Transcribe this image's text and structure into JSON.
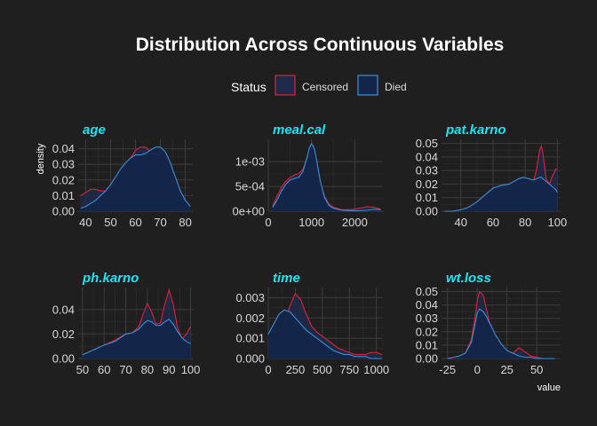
{
  "chart_data": {
    "type": "area",
    "title": "Distribution Across Continuous Variables",
    "xlabel": "value",
    "ylabel": "density",
    "legend": {
      "title": "Status",
      "placement": "top",
      "items": [
        {
          "label": "Censored",
          "fill": "#1f2a4a",
          "stroke": "#e0203a"
        },
        {
          "label": "Died",
          "fill": "#13264a",
          "stroke": "#3b8fd6"
        }
      ]
    },
    "grid": true,
    "facets": [
      {
        "name": "age",
        "xlim": [
          37,
          83
        ],
        "ylim": [
          0,
          0.046
        ],
        "xticks": [
          40,
          50,
          60,
          70,
          80
        ],
        "xtick_labels": [
          "40",
          "50",
          "60",
          "70",
          "80"
        ],
        "yticks": [
          0,
          0.01,
          0.02,
          0.03,
          0.04
        ],
        "ytick_labels": [
          "0.00",
          "0.01",
          "0.02",
          "0.03",
          "0.04"
        ],
        "series": [
          {
            "name": "Censored",
            "x": [
              38,
              40,
              42,
              44,
              46,
              48,
              50,
              52,
              54,
              56,
              58,
              60,
              62,
              64,
              66,
              68,
              70,
              72,
              74,
              76,
              78,
              80,
              82
            ],
            "y": [
              0.01,
              0.012,
              0.014,
              0.014,
              0.013,
              0.013,
              0.015,
              0.019,
              0.024,
              0.029,
              0.034,
              0.039,
              0.041,
              0.041,
              0.038,
              0.036,
              0.036,
              0.034,
              0.029,
              0.021,
              0.013,
              0.007,
              0.003
            ]
          },
          {
            "name": "Died",
            "x": [
              38,
              40,
              42,
              44,
              46,
              48,
              50,
              52,
              54,
              56,
              58,
              60,
              62,
              64,
              66,
              68,
              70,
              72,
              74,
              76,
              78,
              80,
              82
            ],
            "y": [
              0.002,
              0.003,
              0.005,
              0.007,
              0.01,
              0.013,
              0.017,
              0.022,
              0.027,
              0.031,
              0.034,
              0.036,
              0.036,
              0.037,
              0.039,
              0.041,
              0.041,
              0.038,
              0.031,
              0.022,
              0.013,
              0.007,
              0.003
            ]
          }
        ]
      },
      {
        "name": "meal.cal",
        "xlim": [
          0,
          2650
        ],
        "ylim": [
          0,
          0.00145
        ],
        "xticks": [
          0,
          1000,
          2000
        ],
        "xtick_labels": [
          "0",
          "1000",
          "2000"
        ],
        "yticks": [
          0,
          0.0005,
          0.001
        ],
        "ytick_labels": [
          "0e+00",
          "5e-04",
          "1e-03"
        ],
        "series": [
          {
            "name": "Censored",
            "x": [
              100,
              200,
              300,
              400,
              500,
              600,
              700,
              800,
              900,
              950,
              1000,
              1050,
              1100,
              1200,
              1300,
              1400,
              1500,
              1700,
              1900,
              2100,
              2300,
              2450,
              2600
            ],
            "y": [
              0.0001,
              0.0003,
              0.00048,
              0.0006,
              0.00068,
              0.00073,
              0.00076,
              0.00084,
              0.00108,
              0.00122,
              0.00132,
              0.00126,
              0.00108,
              0.0006,
              0.0003,
              0.00015,
              8e-05,
              3e-05,
              3e-05,
              6e-05,
              9e-05,
              8e-05,
              4e-05
            ]
          },
          {
            "name": "Died",
            "x": [
              100,
              200,
              300,
              400,
              500,
              600,
              700,
              800,
              900,
              950,
              1000,
              1050,
              1100,
              1200,
              1300,
              1400,
              1500,
              1700,
              1900,
              2100,
              2300,
              2450,
              2600
            ],
            "y": [
              8e-05,
              0.00022,
              0.0004,
              0.00054,
              0.00063,
              0.00066,
              0.00068,
              0.0008,
              0.0011,
              0.00128,
              0.00136,
              0.0013,
              0.00112,
              0.00062,
              0.00028,
              0.00012,
              6e-05,
              2e-05,
              1e-05,
              1e-05,
              2e-05,
              4e-05,
              3e-05
            ]
          }
        ]
      },
      {
        "name": "pat.karno",
        "xlim": [
          28,
          102
        ],
        "ylim": [
          0,
          0.053
        ],
        "xticks": [
          40,
          60,
          80,
          100
        ],
        "xtick_labels": [
          "40",
          "60",
          "80",
          "100"
        ],
        "yticks": [
          0,
          0.01,
          0.02,
          0.03,
          0.04,
          0.05
        ],
        "ytick_labels": [
          "0.00",
          "0.01",
          "0.02",
          "0.03",
          "0.04",
          "0.05"
        ],
        "series": [
          {
            "name": "Censored",
            "x": [
              30,
              35,
              40,
              45,
              50,
              55,
              60,
              65,
              70,
              73,
              76,
              79,
              82,
              85,
              87,
              89,
              90,
              91,
              93,
              95,
              97,
              99,
              100
            ],
            "y": [
              0.0,
              0.0,
              0.001,
              0.003,
              0.006,
              0.011,
              0.016,
              0.018,
              0.019,
              0.019,
              0.02,
              0.021,
              0.022,
              0.022,
              0.03,
              0.045,
              0.048,
              0.043,
              0.024,
              0.02,
              0.026,
              0.031,
              0.031
            ]
          },
          {
            "name": "Died",
            "x": [
              30,
              35,
              40,
              45,
              50,
              55,
              60,
              65,
              70,
              73,
              76,
              79,
              82,
              85,
              87,
              89,
              90,
              91,
              93,
              95,
              97,
              99,
              100
            ],
            "y": [
              0.0,
              0.0,
              0.001,
              0.003,
              0.007,
              0.012,
              0.017,
              0.019,
              0.02,
              0.022,
              0.024,
              0.025,
              0.024,
              0.023,
              0.024,
              0.025,
              0.025,
              0.024,
              0.022,
              0.02,
              0.018,
              0.016,
              0.014
            ]
          }
        ]
      },
      {
        "name": "ph.karno",
        "xlim": [
          48,
          101
        ],
        "ylim": [
          0,
          0.058
        ],
        "xticks": [
          50,
          60,
          70,
          80,
          90,
          100
        ],
        "xtick_labels": [
          "50",
          "60",
          "70",
          "80",
          "90",
          "100"
        ],
        "yticks": [
          0,
          0.02,
          0.04
        ],
        "ytick_labels": [
          "0.00",
          "0.02",
          "0.04"
        ],
        "series": [
          {
            "name": "Censored",
            "x": [
              50,
              55,
              60,
              65,
              70,
              73,
              76,
              78,
              80,
              82,
              84,
              86,
              88,
              90,
              92,
              94,
              96,
              98,
              100
            ],
            "y": [
              0.003,
              0.007,
              0.011,
              0.015,
              0.02,
              0.021,
              0.026,
              0.036,
              0.045,
              0.038,
              0.028,
              0.029,
              0.044,
              0.056,
              0.044,
              0.025,
              0.016,
              0.02,
              0.026
            ]
          },
          {
            "name": "Died",
            "x": [
              50,
              55,
              60,
              65,
              70,
              73,
              76,
              78,
              80,
              82,
              84,
              86,
              88,
              90,
              92,
              94,
              96,
              98,
              100
            ],
            "y": [
              0.003,
              0.007,
              0.011,
              0.014,
              0.02,
              0.021,
              0.024,
              0.028,
              0.031,
              0.03,
              0.027,
              0.027,
              0.03,
              0.032,
              0.028,
              0.022,
              0.017,
              0.014,
              0.012
            ]
          }
        ]
      },
      {
        "name": "time",
        "xlim": [
          0,
          1060
        ],
        "ylim": [
          0,
          0.0035
        ],
        "xticks": [
          0,
          250,
          500,
          750,
          1000
        ],
        "xtick_labels": [
          "0",
          "250",
          "500",
          "750",
          "1000"
        ],
        "yticks": [
          0,
          0.001,
          0.002,
          0.003
        ],
        "ytick_labels": [
          "0.000",
          "0.001",
          "0.002",
          "0.003"
        ],
        "series": [
          {
            "name": "Censored",
            "x": [
              0,
              50,
              100,
              150,
              200,
              250,
              300,
              350,
              400,
              450,
              500,
              550,
              600,
              650,
              700,
              750,
              800,
              850,
              900,
              950,
              1000,
              1050
            ],
            "y": [
              0.0004,
              0.0007,
              0.0011,
              0.0017,
              0.0026,
              0.0032,
              0.0029,
              0.0022,
              0.0016,
              0.0013,
              0.0011,
              0.0009,
              0.0007,
              0.0005,
              0.0004,
              0.0003,
              0.0002,
              0.0002,
              0.0002,
              0.0003,
              0.0003,
              0.0002
            ]
          },
          {
            "name": "Died",
            "x": [
              0,
              50,
              100,
              150,
              200,
              250,
              300,
              350,
              400,
              450,
              500,
              550,
              600,
              650,
              700,
              750,
              800,
              850,
              900,
              950,
              1000,
              1050
            ],
            "y": [
              0.0012,
              0.0017,
              0.0022,
              0.0024,
              0.0023,
              0.002,
              0.0017,
              0.0014,
              0.0012,
              0.001,
              0.0008,
              0.0006,
              0.0004,
              0.0003,
              0.0002,
              0.0002,
              0.0001,
              0.0001,
              0.0001,
              0.0,
              0.0,
              0.0
            ]
          }
        ]
      },
      {
        "name": "wt.loss",
        "xlim": [
          -30,
          70
        ],
        "ylim": [
          0,
          0.053
        ],
        "xticks": [
          -25,
          0,
          25,
          50
        ],
        "xtick_labels": [
          "-25",
          "0",
          "25",
          "50"
        ],
        "yticks": [
          0,
          0.01,
          0.02,
          0.03,
          0.04,
          0.05
        ],
        "ytick_labels": [
          "0.00",
          "0.01",
          "0.02",
          "0.03",
          "0.04",
          "0.05"
        ],
        "series": [
          {
            "name": "Censored",
            "x": [
              -25,
              -20,
              -15,
              -10,
              -5,
              -2,
              0,
              2,
              5,
              8,
              10,
              13,
              15,
              18,
              20,
              25,
              30,
              35,
              40,
              45,
              50,
              55,
              60,
              65
            ],
            "y": [
              0.0,
              0.0,
              0.001,
              0.004,
              0.014,
              0.03,
              0.043,
              0.05,
              0.047,
              0.036,
              0.028,
              0.021,
              0.014,
              0.009,
              0.006,
              0.004,
              0.004,
              0.008,
              0.005,
              0.002,
              0.001,
              0.0,
              0.0,
              0.0
            ]
          },
          {
            "name": "Died",
            "x": [
              -25,
              -20,
              -15,
              -10,
              -5,
              -2,
              0,
              2,
              5,
              8,
              10,
              13,
              15,
              18,
              20,
              25,
              30,
              35,
              40,
              45,
              50,
              55,
              60,
              65
            ],
            "y": [
              0.0,
              0.001,
              0.002,
              0.004,
              0.012,
              0.025,
              0.034,
              0.037,
              0.035,
              0.031,
              0.027,
              0.022,
              0.018,
              0.014,
              0.011,
              0.006,
              0.004,
              0.002,
              0.001,
              0.001,
              0.0,
              0.0,
              0.0,
              0.0
            ]
          }
        ]
      }
    ]
  }
}
